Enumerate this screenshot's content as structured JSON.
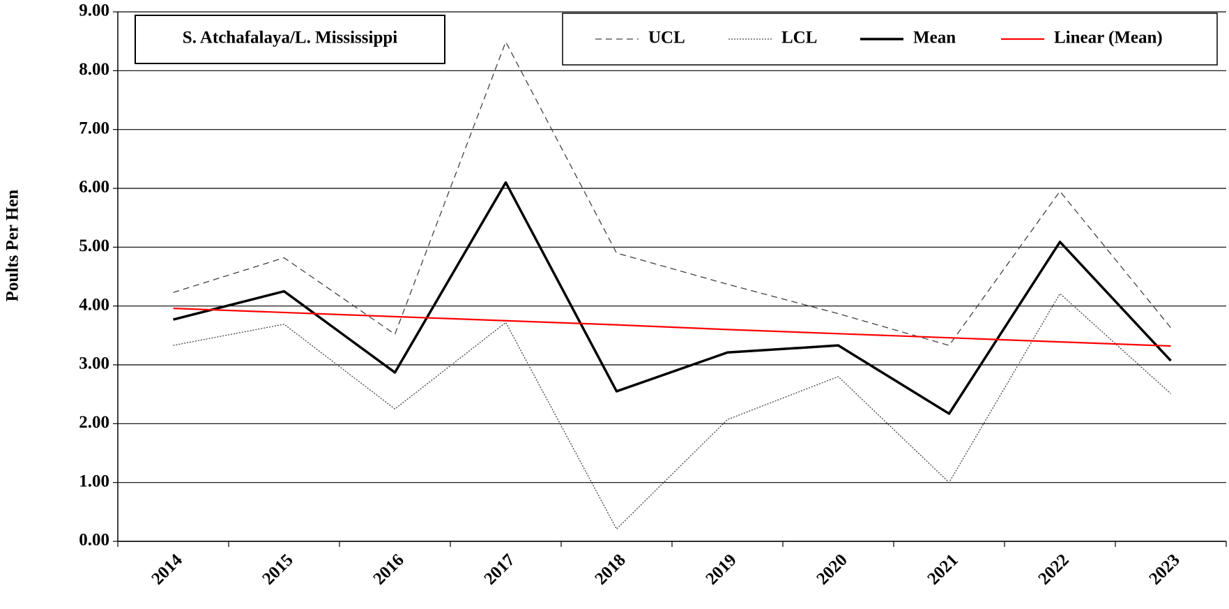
{
  "chart_data": {
    "type": "line",
    "title": "S. Atchafalaya/L.  Mississippi",
    "y_label": "Poults Per Hen",
    "categories": [
      "2014",
      "2015",
      "2016",
      "2017",
      "2018",
      "2019",
      "2020",
      "2021",
      "2022",
      "2023"
    ],
    "series": [
      {
        "name": "UCL",
        "color": "#404040",
        "line_style": "dashed",
        "line_width": 1.3,
        "values": [
          4.23,
          4.82,
          3.52,
          8.49,
          4.9,
          4.37,
          3.87,
          3.33,
          5.95,
          3.63
        ]
      },
      {
        "name": "LCL",
        "color": "#404040",
        "line_style": "dotted",
        "line_width": 1.3,
        "values": [
          3.33,
          3.69,
          2.25,
          3.72,
          0.21,
          2.07,
          2.8,
          1.0,
          4.21,
          2.51
        ]
      },
      {
        "name": "Mean",
        "color": "#000000",
        "line_style": "solid",
        "line_width": 3.5,
        "values": [
          3.77,
          4.25,
          2.87,
          6.1,
          2.55,
          3.21,
          3.33,
          2.17,
          5.09,
          3.07
        ]
      },
      {
        "name": "Linear (Mean)",
        "color": "#ff0000",
        "line_style": "solid",
        "line_width": 2.2,
        "values": [
          3.96,
          3.89,
          3.82,
          3.75,
          3.68,
          3.6,
          3.53,
          3.46,
          3.39,
          3.32
        ]
      }
    ],
    "ylim": [
      0,
      9
    ],
    "yticks": [
      {
        "value": 0,
        "label": "0.00"
      },
      {
        "value": 1,
        "label": "1.00"
      },
      {
        "value": 2,
        "label": "2.00"
      },
      {
        "value": 3,
        "label": "3.00"
      },
      {
        "value": 4,
        "label": "4.00"
      },
      {
        "value": 5,
        "label": "5.00"
      },
      {
        "value": 6,
        "label": "6.00"
      },
      {
        "value": 7,
        "label": "7.00"
      },
      {
        "value": 8,
        "label": "8.00"
      },
      {
        "value": 9,
        "label": "9.00"
      }
    ],
    "grid": true,
    "legend": "top-right"
  }
}
